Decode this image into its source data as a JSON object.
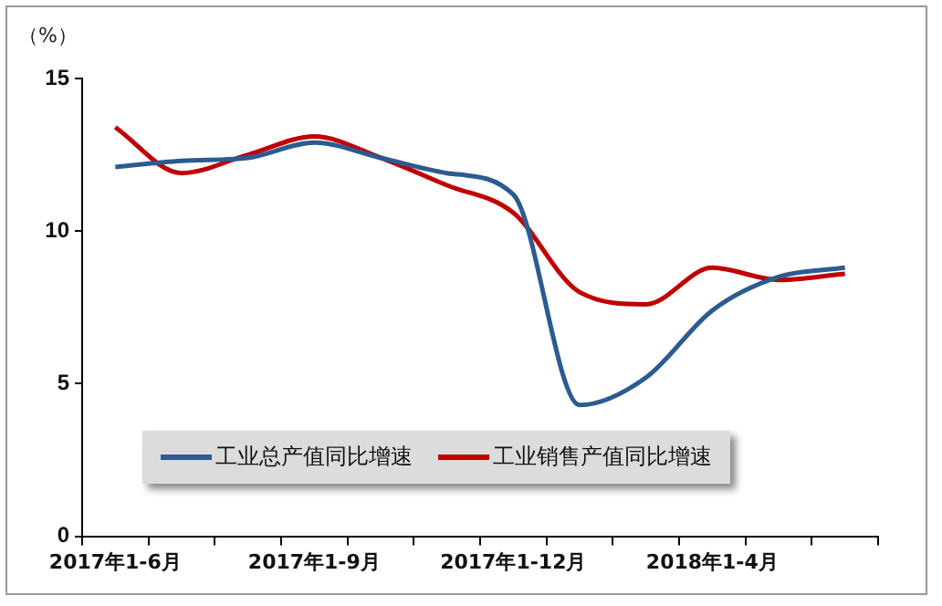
{
  "chart_data": {
    "type": "line",
    "ylabel": "（%）",
    "categories": [
      "2017年1-6月",
      null,
      null,
      "2017年1-9月",
      null,
      null,
      "2017年1-12月",
      null,
      null,
      "2018年1-4月",
      null,
      null
    ],
    "series": [
      {
        "name": "工业总产值同比增速",
        "color": "#2b5b91",
        "values": [
          12.1,
          12.3,
          12.4,
          12.9,
          12.4,
          11.9,
          11.2,
          4.3,
          5.2,
          7.4,
          8.5,
          8.8
        ]
      },
      {
        "name": "工业销售产值同比增速",
        "color": "#c00000",
        "values": [
          13.4,
          11.9,
          12.5,
          13.1,
          12.4,
          11.5,
          10.6,
          8.0,
          7.6,
          8.8,
          8.4,
          8.6
        ]
      }
    ],
    "ylim": [
      0,
      15
    ],
    "yticks": [
      0,
      5,
      10,
      15
    ],
    "grid": false,
    "legend": "bottom left",
    "marker": "none",
    "line_style": "solid"
  }
}
